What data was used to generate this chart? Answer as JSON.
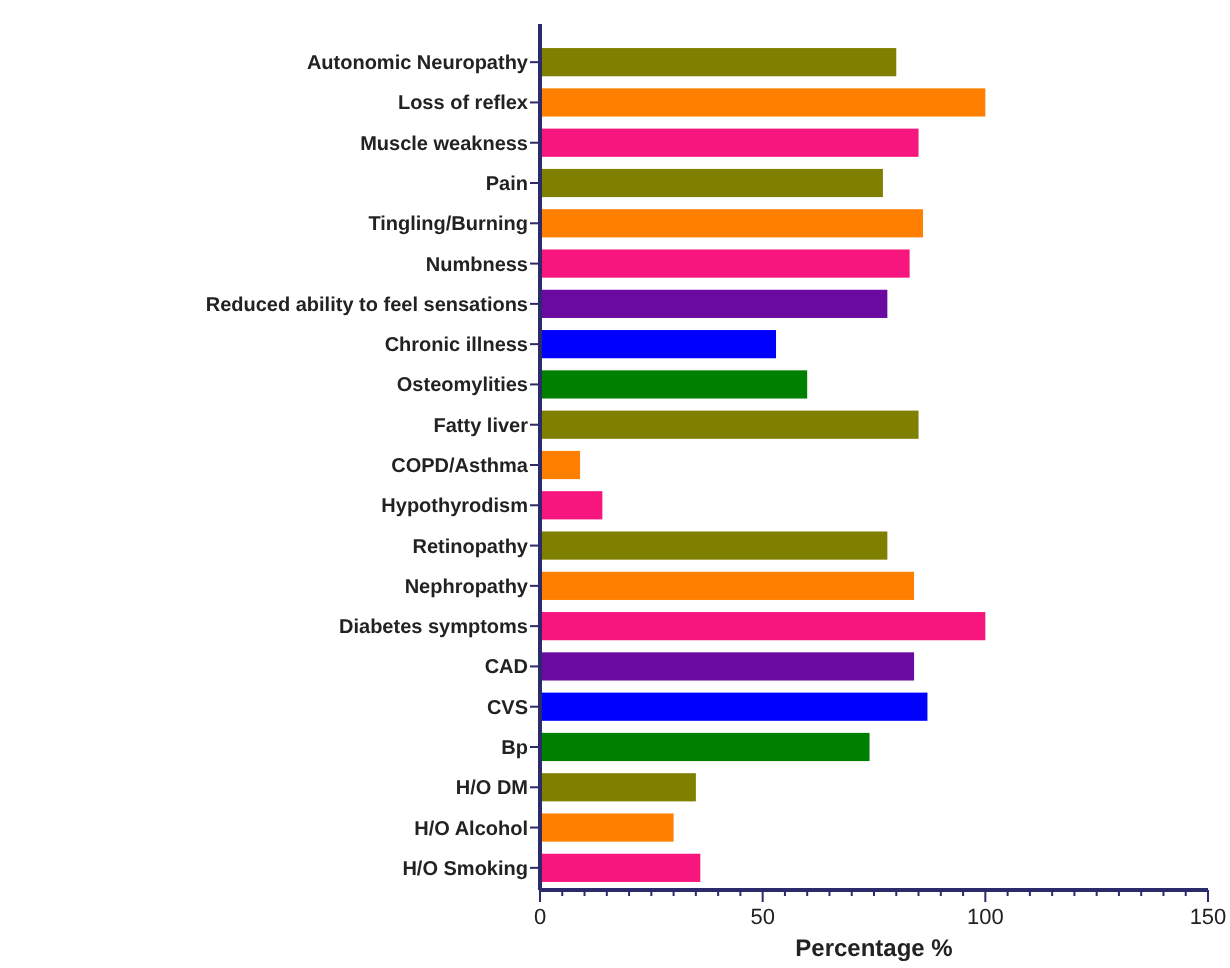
{
  "chart_data": {
    "type": "bar",
    "orientation": "horizontal",
    "xlabel": "Percentage %",
    "categories": [
      "Autonomic Neuropathy",
      "Loss of reflex",
      "Muscle weakness",
      "Pain",
      "Tingling/Burning",
      "Numbness",
      "Reduced ability to feel sensations",
      "Chronic illness",
      "Osteomylities",
      "Fatty liver",
      "COPD/Asthma",
      "Hypothyrodism",
      "Retinopathy",
      "Nephropathy",
      "Diabetes symptoms",
      "CAD",
      "CVS",
      "Bp",
      "H/O DM",
      "H/O Alcohol",
      "H/O Smoking"
    ],
    "values": [
      80,
      100,
      85,
      77,
      86,
      83,
      78,
      53,
      60,
      85,
      9,
      14,
      78,
      84,
      100,
      84,
      87,
      74,
      35,
      30,
      36
    ],
    "colors": [
      "#808000",
      "#ff8000",
      "#f7157e",
      "#808000",
      "#ff8000",
      "#f7157e",
      "#6a0aa0",
      "#0000ff",
      "#008000",
      "#808000",
      "#ff8000",
      "#f7157e",
      "#808000",
      "#ff8000",
      "#f7157e",
      "#6a0aa0",
      "#0000ff",
      "#008000",
      "#808000",
      "#ff8000",
      "#f7157e"
    ],
    "xlim": [
      0,
      150
    ],
    "xticks": [
      0,
      {
        "value": 5,
        "label": null
      },
      {
        "value": 10,
        "label": null
      },
      {
        "value": 15,
        "label": null
      },
      {
        "value": 20,
        "label": null
      },
      {
        "value": 25,
        "label": null
      },
      {
        "value": 30,
        "label": null
      },
      {
        "value": 35,
        "label": null
      },
      {
        "value": 40,
        "label": null
      },
      {
        "value": 45,
        "label": null
      },
      50,
      {
        "value": 55,
        "label": null
      },
      {
        "value": 60,
        "label": null
      },
      {
        "value": 65,
        "label": null
      },
      {
        "value": 70,
        "label": null
      },
      {
        "value": 75,
        "label": null
      },
      {
        "value": 80,
        "label": null
      },
      {
        "value": 85,
        "label": null
      },
      {
        "value": 90,
        "label": null
      },
      {
        "value": 95,
        "label": null
      },
      100,
      {
        "value": 105,
        "label": null
      },
      {
        "value": 110,
        "label": null
      },
      {
        "value": 115,
        "label": null
      },
      {
        "value": 120,
        "label": null
      },
      {
        "value": 125,
        "label": null
      },
      {
        "value": 130,
        "label": null
      },
      {
        "value": 135,
        "label": null
      },
      {
        "value": 140,
        "label": null
      },
      {
        "value": 145,
        "label": null
      },
      150
    ],
    "grid": false
  }
}
